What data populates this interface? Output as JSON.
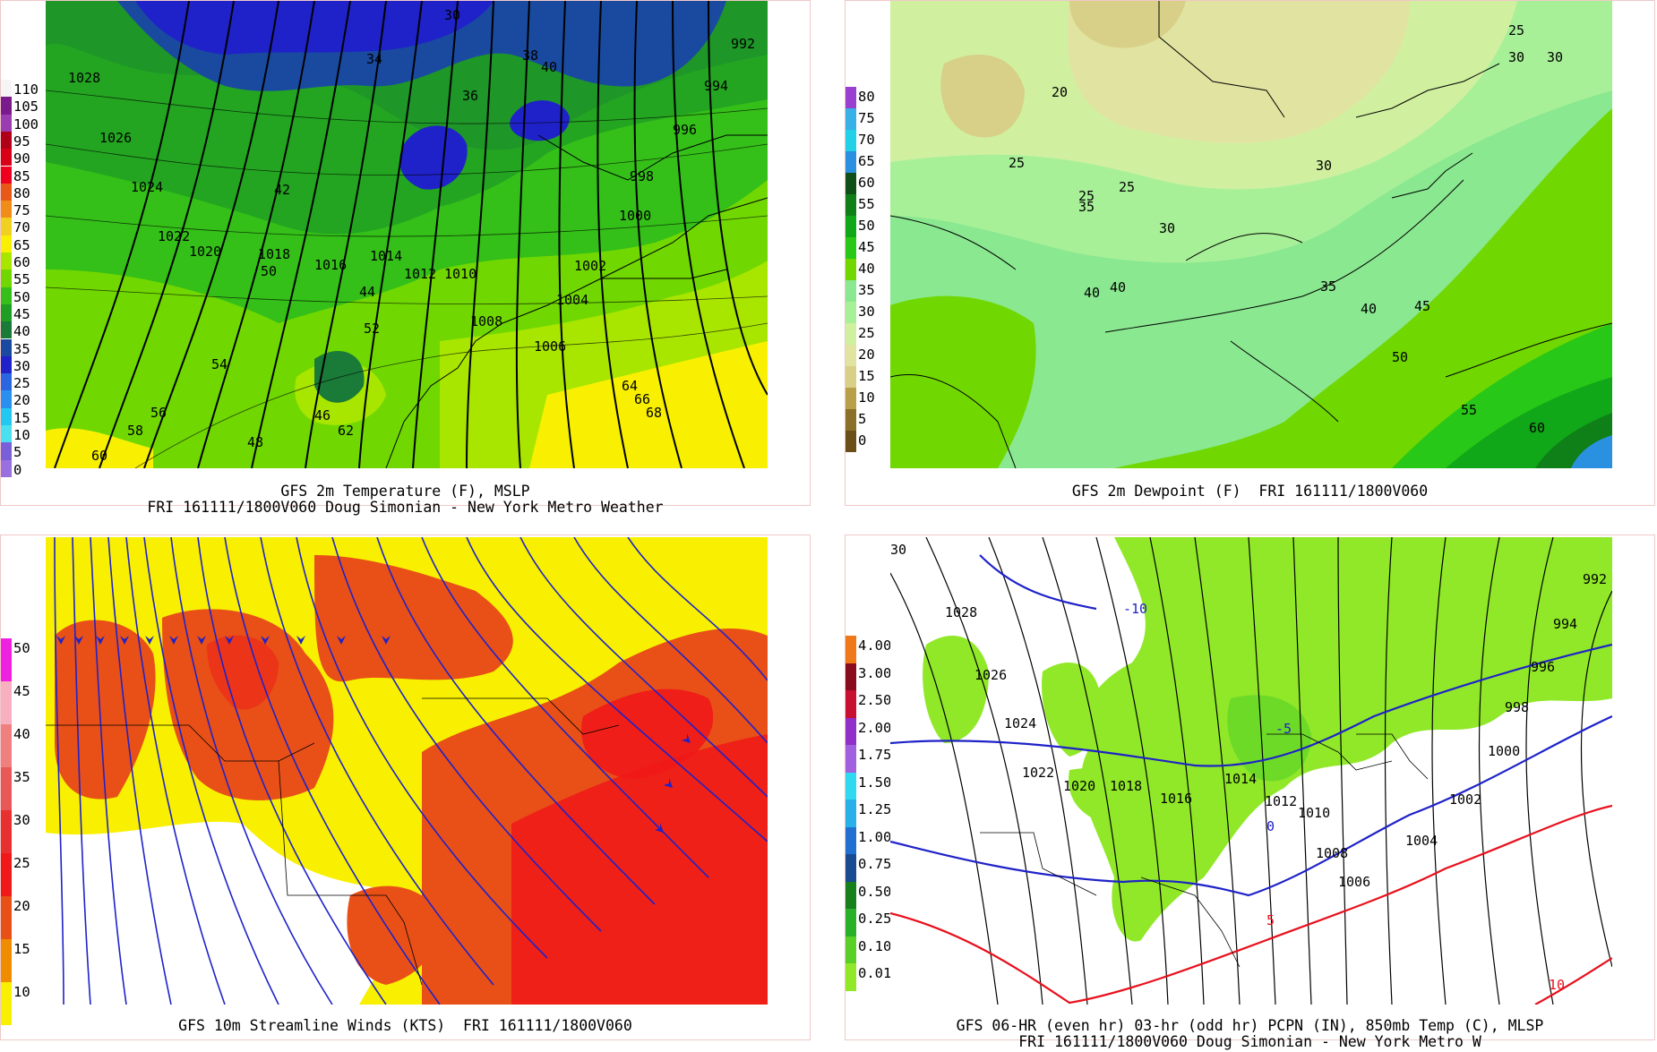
{
  "panels": {
    "temp": {
      "caption1": "GFS 2m Temperature (F), MSLP",
      "caption2": "FRI 161111/1800V060 Doug Simonian - New York Metro Weather",
      "legend": [
        "110",
        "105",
        "100",
        "95",
        "90",
        "85",
        "80",
        "75",
        "70",
        "65",
        "60",
        "55",
        "50",
        "45",
        "40",
        "35",
        "30",
        "25",
        "20",
        "15",
        "10",
        "5",
        "0"
      ],
      "legend_colors": [
        "#f5f5f5",
        "#7a1a8c",
        "#9a3db0",
        "#b00018",
        "#d80018",
        "#f00020",
        "#e85818",
        "#f08c18",
        "#f0d020",
        "#f8f000",
        "#a8e600",
        "#70d800",
        "#34c018",
        "#1f9e24",
        "#1a7a38",
        "#1a4aa0",
        "#1f22c8",
        "#2a66e0",
        "#2a90f0",
        "#22c8f0",
        "#4ae0f0",
        "#7a60d8",
        "#9a70e0"
      ],
      "labels": [
        "1028",
        "1026",
        "1024",
        "1022",
        "1020",
        "1018",
        "1016",
        "1014",
        "1012",
        "1010",
        "1008",
        "1006",
        "1004",
        "1002",
        "1000",
        "998",
        "996",
        "994",
        "992",
        "30",
        "34",
        "36",
        "38",
        "40",
        "42",
        "44",
        "46",
        "48",
        "50",
        "52",
        "54",
        "56",
        "58",
        "60",
        "62",
        "64",
        "66",
        "68"
      ]
    },
    "dew": {
      "caption1": "GFS 2m Dewpoint (F)  FRI 161111/1800V060",
      "legend": [
        "80",
        "75",
        "70",
        "65",
        "60",
        "55",
        "50",
        "45",
        "40",
        "35",
        "30",
        "25",
        "20",
        "15",
        "10",
        "5",
        "0"
      ],
      "legend_colors": [
        "#9a40d0",
        "#38b0e8",
        "#22d0e8",
        "#2a90e0",
        "#0f5018",
        "#0f8018",
        "#10a818",
        "#28c818",
        "#70d800",
        "#8ae890",
        "#a8f098",
        "#d0f0a0",
        "#e0e4a0",
        "#d8d088",
        "#b8a048",
        "#8a7028",
        "#6a5018"
      ],
      "labels": [
        "20",
        "25",
        "25",
        "25",
        "30",
        "30",
        "30",
        "35",
        "35",
        "40",
        "40",
        "40",
        "45",
        "50",
        "55",
        "60",
        "25",
        "30"
      ]
    },
    "wind": {
      "caption1": "GFS 10m Streamline Winds (KTS)  FRI 161111/1800V060",
      "legend": [
        "50",
        "45",
        "40",
        "35",
        "30",
        "25",
        "20",
        "15",
        "10"
      ],
      "legend_colors": [
        "#f020e0",
        "#f8b0c0",
        "#f08080",
        "#e85858",
        "#e83030",
        "#f01818",
        "#e85018",
        "#f08c00",
        "#f8f000"
      ]
    },
    "pcpn": {
      "caption1": "GFS 06-HR (even hr) 03-hr (odd hr) PCPN (IN), 850mb Temp (C), MLSP",
      "caption2": "FRI 161111/1800V060 Doug Simonian - New York Metro W",
      "legend": [
        "4.00",
        "3.00",
        "2.50",
        "2.00",
        "1.75",
        "1.50",
        "1.25",
        "1.00",
        "0.75",
        "0.50",
        "0.25",
        "0.10",
        "0.01"
      ],
      "legend_colors": [
        "#f07818",
        "#8a0a20",
        "#c81030",
        "#9030c8",
        "#a060e0",
        "#30d8f0",
        "#28b0e8",
        "#2070d0",
        "#1a4a90",
        "#18801a",
        "#28b028",
        "#58d028",
        "#90e828"
      ],
      "labels": [
        "1028",
        "1026",
        "1024",
        "1022",
        "1020",
        "1018",
        "1016",
        "1014",
        "1012",
        "1010",
        "1008",
        "1006",
        "1004",
        "1002",
        "1000",
        "998",
        "996",
        "994",
        "992",
        "-10",
        "-5",
        "0",
        "5",
        "10",
        "30"
      ]
    }
  }
}
